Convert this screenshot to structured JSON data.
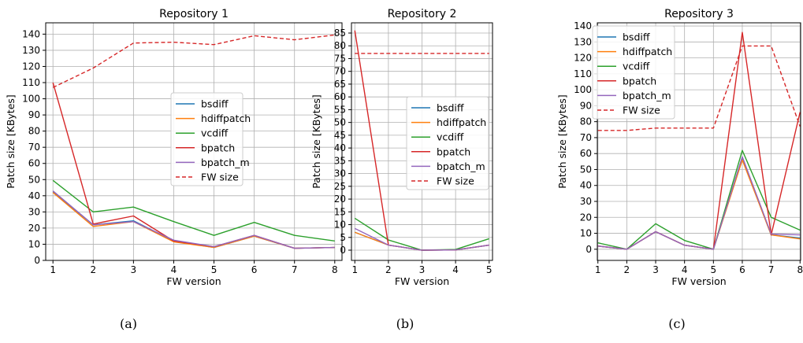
{
  "colors": {
    "bsdiff": "#1f77b4",
    "hdiffpatch": "#ff7f0e",
    "vcdiff": "#2ca02c",
    "bpatch": "#d62728",
    "bpatch_m": "#9467bd",
    "FW size": "#d62728",
    "grid": "#b0b0b0"
  },
  "chart_data": [
    {
      "type": "line",
      "title": "Repository 1",
      "caption": "(a)",
      "xlabel": "FW version",
      "ylabel": "Patch size [KBytes]",
      "x": [
        1,
        2,
        3,
        4,
        5,
        6,
        7,
        8
      ],
      "xlim": [
        0.82,
        8.18
      ],
      "ylim": [
        0,
        147
      ],
      "yticks": [
        0,
        10,
        20,
        30,
        40,
        50,
        60,
        70,
        80,
        90,
        100,
        110,
        120,
        130,
        140
      ],
      "grid": true,
      "legend": "center-right",
      "series": [
        {
          "name": "bsdiff",
          "style": "solid",
          "values": [
            42.5,
            22,
            24.5,
            12,
            8,
            15,
            7.5,
            8
          ]
        },
        {
          "name": "hdiffpatch",
          "style": "solid",
          "values": [
            42,
            21,
            24,
            11.5,
            8,
            15,
            7.5,
            8
          ]
        },
        {
          "name": "vcdiff",
          "style": "solid",
          "values": [
            49.5,
            30,
            33,
            24,
            15.5,
            23.5,
            15.5,
            12
          ]
        },
        {
          "name": "bpatch",
          "style": "solid",
          "values": [
            110,
            22.5,
            27.5,
            12,
            8.5,
            15.5,
            7.5,
            8
          ]
        },
        {
          "name": "bpatch_m",
          "style": "solid",
          "values": [
            43,
            22,
            24,
            12.5,
            8.5,
            15.5,
            7.5,
            8
          ]
        },
        {
          "name": "FW size",
          "style": "dashed",
          "values": [
            107,
            119,
            134.5,
            135,
            133.5,
            139,
            136.5,
            139.5
          ]
        }
      ]
    },
    {
      "type": "line",
      "title": "Repository 2",
      "caption": "(b)",
      "xlabel": "FW version",
      "ylabel": "Patch size [KBytes]",
      "x": [
        1,
        2,
        3,
        4,
        5
      ],
      "xlim": [
        0.9,
        5.1
      ],
      "ylim": [
        -4,
        89
      ],
      "yticks": [
        0,
        5,
        10,
        15,
        20,
        25,
        30,
        35,
        40,
        45,
        50,
        55,
        60,
        65,
        70,
        75,
        80,
        85
      ],
      "grid": true,
      "legend": "center-right",
      "series": [
        {
          "name": "bsdiff",
          "style": "solid",
          "values": [
            7,
            2,
            0,
            0.1,
            2
          ]
        },
        {
          "name": "hdiffpatch",
          "style": "solid",
          "values": [
            7,
            2,
            0,
            0.1,
            2
          ]
        },
        {
          "name": "vcdiff",
          "style": "solid",
          "values": [
            12.5,
            4,
            0,
            0.3,
            4.5
          ]
        },
        {
          "name": "bpatch",
          "style": "solid",
          "values": [
            86,
            2,
            0,
            0.1,
            2
          ]
        },
        {
          "name": "bpatch_m",
          "style": "solid",
          "values": [
            8.5,
            2,
            0,
            0.1,
            2
          ]
        },
        {
          "name": "FW size",
          "style": "dashed",
          "values": [
            77,
            77,
            77,
            77,
            77
          ]
        }
      ]
    },
    {
      "type": "line",
      "title": "Repository 3",
      "caption": "(c)",
      "xlabel": "FW version",
      "ylabel": "Patch size [KBytes]",
      "x": [
        1,
        2,
        3,
        4,
        5,
        6,
        7,
        8
      ],
      "xlim": [
        0.98,
        8.02
      ],
      "ylim": [
        -7,
        142
      ],
      "yticks": [
        0,
        10,
        20,
        30,
        40,
        50,
        60,
        70,
        80,
        90,
        100,
        110,
        120,
        130,
        140
      ],
      "grid": true,
      "legend": "top-left",
      "series": [
        {
          "name": "bsdiff",
          "style": "solid",
          "values": [
            2,
            0,
            11,
            2.5,
            0,
            57,
            9,
            7
          ]
        },
        {
          "name": "hdiffpatch",
          "style": "solid",
          "values": [
            2,
            0,
            11,
            2.5,
            0,
            56,
            9,
            6.5
          ]
        },
        {
          "name": "vcdiff",
          "style": "solid",
          "values": [
            4,
            0,
            16,
            5.5,
            0,
            62,
            20,
            12
          ]
        },
        {
          "name": "bpatch",
          "style": "solid",
          "values": [
            2,
            0,
            11,
            2.5,
            0,
            136,
            9,
            86
          ]
        },
        {
          "name": "bpatch_m",
          "style": "solid",
          "values": [
            2,
            0,
            11,
            2.5,
            0,
            58,
            9.5,
            9
          ]
        },
        {
          "name": "FW size",
          "style": "dashed",
          "values": [
            74.5,
            74.5,
            76,
            76,
            76,
            127.5,
            127.5,
            77
          ]
        }
      ]
    }
  ]
}
